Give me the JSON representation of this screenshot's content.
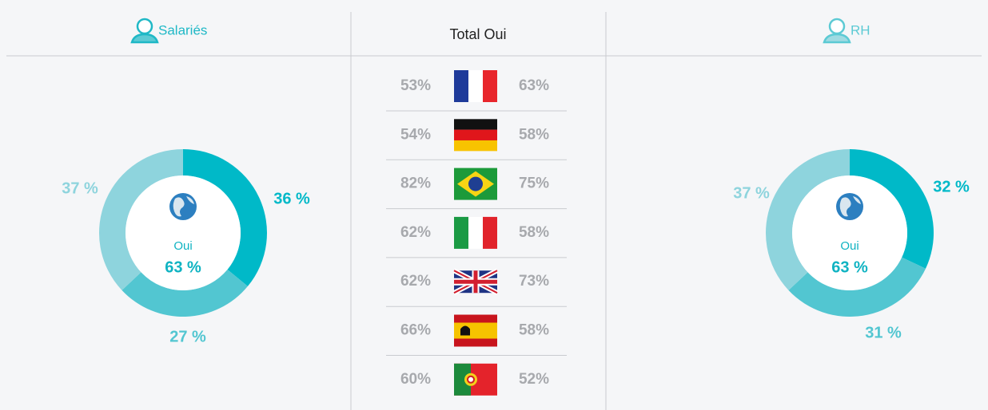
{
  "chart_data": [
    {
      "type": "donut",
      "title": "Salariés",
      "center_label": "Oui",
      "center_value": "63 %",
      "categories": [
        null,
        null,
        null
      ],
      "values": [
        36,
        27,
        37
      ],
      "value_labels": [
        "36 %",
        "27 %",
        "37 %"
      ],
      "colors": [
        "#00b9c8",
        "#52c6d1",
        "#8ed4dd"
      ]
    },
    {
      "type": "donut",
      "title": "RH",
      "center_label": "Oui",
      "center_value": "63 %",
      "categories": [
        null,
        null,
        null
      ],
      "values": [
        32,
        31,
        37
      ],
      "value_labels": [
        "32 %",
        "31 %",
        "37 %"
      ],
      "colors": [
        "#00b9c8",
        "#52c6d1",
        "#8ed4dd"
      ]
    }
  ],
  "table": {
    "title": "Total Oui",
    "rows": [
      [
        "53%",
        "63%"
      ],
      [
        "54%",
        "58%"
      ],
      [
        "82%",
        "75%"
      ],
      [
        "62%",
        "58%"
      ],
      [
        "62%",
        "73%"
      ],
      [
        "66%",
        "58%"
      ],
      [
        "60%",
        "52%"
      ]
    ]
  }
}
